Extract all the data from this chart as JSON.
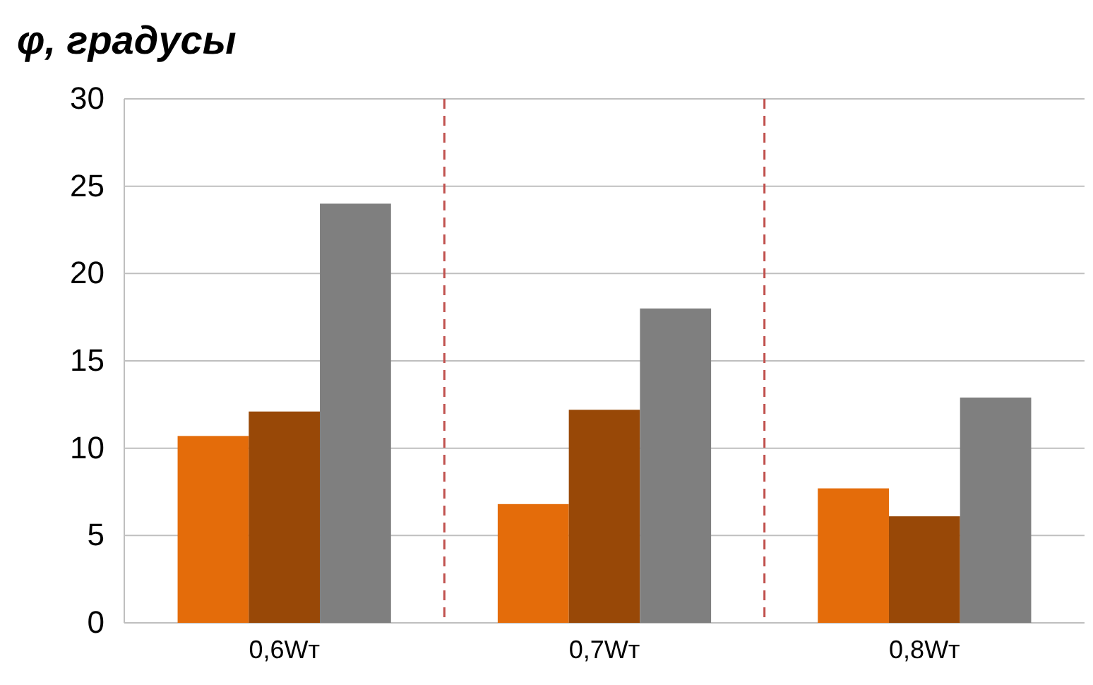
{
  "chart_data": {
    "type": "bar",
    "title": "φ, градусы",
    "categories": [
      "0,6Wт",
      "0,7Wт",
      "0,8Wт"
    ],
    "series": [
      {
        "color": "#e46c0a",
        "values": [
          10.7,
          6.8,
          7.7
        ]
      },
      {
        "color": "#984807",
        "values": [
          12.1,
          12.2,
          6.1
        ]
      },
      {
        "color": "#7f7f7f",
        "values": [
          24,
          18,
          12.9
        ]
      }
    ],
    "ylim": [
      0,
      30
    ],
    "yticks": [
      0,
      5,
      10,
      15,
      20,
      25,
      30
    ],
    "grid": "y"
  }
}
